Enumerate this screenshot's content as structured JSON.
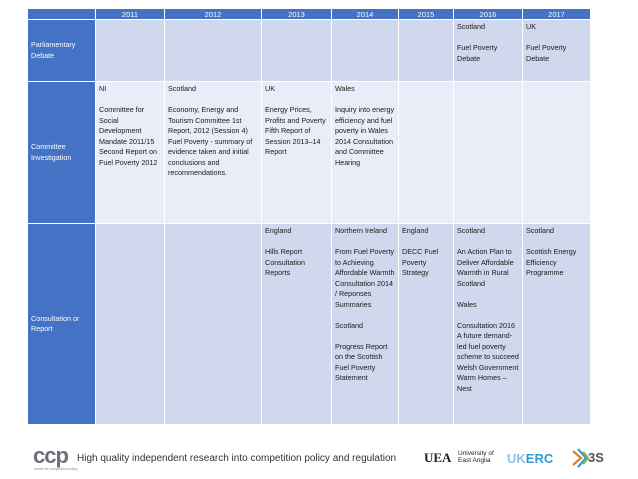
{
  "table": {
    "years": [
      "2011",
      "2012",
      "2013",
      "2014",
      "2015",
      "2016",
      "2017"
    ],
    "rows": [
      {
        "label": "Parliamentary Debate",
        "cells": [
          [],
          [],
          [],
          [],
          [],
          [
            "Scotland",
            "",
            "Fuel Poverty Debate"
          ],
          [
            "UK",
            "",
            "Fuel Poverty Debate"
          ]
        ]
      },
      {
        "label": "Committee Investigation",
        "cells": [
          [
            "NI",
            "",
            "Committee for Social Development Mandate 2011/15 Second Report on Fuel Poverty 2012"
          ],
          [
            "Scotland",
            "",
            "Economy, Energy and Tourism Committee 1st Report, 2012 (Session 4) Fuel Poverty - summary of evidence taken and initial conclusions and recommendations."
          ],
          [
            "UK",
            "",
            "Energy Prices, Profits and Poverty Fifth Report of Session 2013–14 Report"
          ],
          [
            "Wales",
            "",
            "Inquiry into energy efficiency and fuel poverty in Wales 2014 Consultation and Committee Hearing"
          ],
          [],
          [],
          []
        ]
      },
      {
        "label": "Consultation or Report",
        "cells": [
          [],
          [],
          [
            "England",
            "",
            "Hills Report Consultation Reports"
          ],
          [
            "Northern Ireland",
            "",
            "From Fuel Poverty to Achieving Affordable Warmth Consultation 2014 / Reponses Summaries",
            "",
            "Scotland",
            "",
            "Progress Report on the Scottish Fuel Poverty Statement"
          ],
          [
            "England",
            "",
            "DECC Fuel Poverty Strategy"
          ],
          [
            "Scotland",
            "",
            "An Action Plan to Deliver Affordable Warmth in Rural Scotland",
            "",
            "Wales",
            "",
            "Consultation 2016 A future demand-led fuel poverty scheme to succeed Welsh Government Warm Homes – Nest"
          ],
          [
            "Scotland",
            "",
            "Scottish Energy Efficiency Programme"
          ]
        ]
      }
    ]
  },
  "footer": {
    "logo_ccp": "ccp",
    "logo_ccp_sub": "centre for competition policy",
    "tagline": "High quality independent research into competition policy and regulation",
    "uea_mark": "UEA",
    "uea_line1": "University of",
    "uea_line2": "East Anglia",
    "ukerc_uk": "UK",
    "ukerc_erc": "ERC",
    "threes": "3S"
  }
}
